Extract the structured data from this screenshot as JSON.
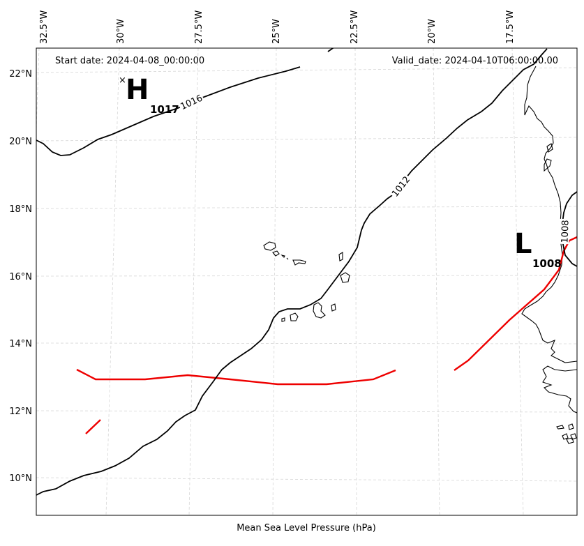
{
  "header": {
    "start_date": "Start date: 2024-04-08_00:00:00",
    "valid_date": "Valid_date: 2024-04-10T06:00:00.00"
  },
  "axis": {
    "xlabel": "Mean Sea Level Pressure (hPa)",
    "lon_ticks": [
      "32.5°W",
      "30°W",
      "27.5°W",
      "25°W",
      "22.5°W",
      "20°W",
      "17.5°W"
    ],
    "lat_ticks": [
      "22°N",
      "20°N",
      "18°N",
      "16°N",
      "14°N",
      "12°N",
      "10°N"
    ],
    "gridlines": true
  },
  "contours": {
    "labels": [
      "1016",
      "1012",
      "1008"
    ]
  },
  "pressure_centers": [
    {
      "type": "H",
      "value": "1017",
      "marker": "×"
    },
    {
      "type": "L",
      "value": "1008"
    }
  ],
  "colors": {
    "contour": "#000000",
    "trough_line": "#ff0000",
    "grid": "#d0d0d0",
    "coast": "#000000"
  }
}
